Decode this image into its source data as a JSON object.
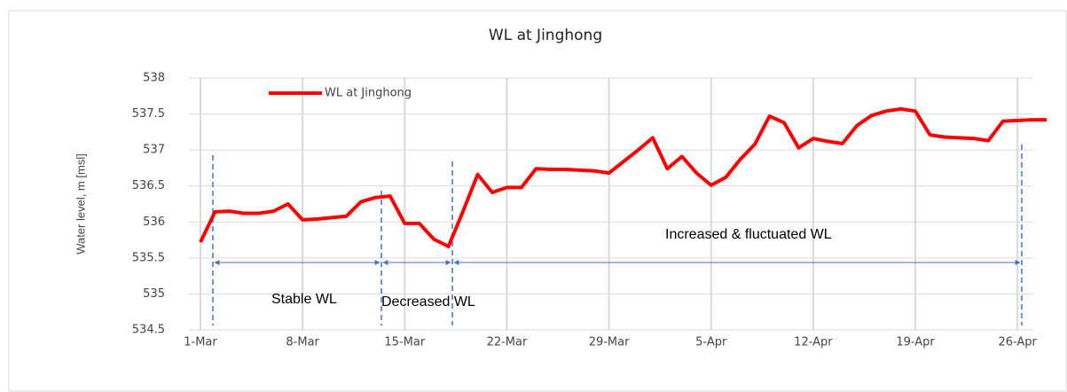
{
  "chart_data": {
    "type": "line",
    "title": "WL at Jinghong",
    "y_label": "Water level, m [msl]",
    "categories": [
      "1-Mar",
      null,
      null,
      null,
      null,
      null,
      null,
      "8-Mar",
      null,
      null,
      null,
      null,
      null,
      null,
      "15-Mar",
      null,
      null,
      null,
      null,
      null,
      null,
      "22-Mar",
      null,
      null,
      null,
      null,
      null,
      null,
      "29-Mar",
      null,
      null,
      null,
      null,
      null,
      null,
      "5-Apr",
      null,
      null,
      null,
      null,
      null,
      null,
      "12-Apr",
      null,
      null,
      null,
      null,
      null,
      null,
      "19-Apr",
      null,
      null,
      null,
      null,
      null,
      null,
      "26-Apr",
      null,
      null
    ],
    "series": [
      {
        "name": "WL at Jinghong",
        "color": "#ff0000",
        "values": [
          535.72,
          536.14,
          536.15,
          536.12,
          536.12,
          536.15,
          536.25,
          536.03,
          536.04,
          536.06,
          536.08,
          536.28,
          536.34,
          536.36,
          535.98,
          535.98,
          535.76,
          535.66,
          536.15,
          536.66,
          536.41,
          536.48,
          536.48,
          536.74,
          536.73,
          536.73,
          536.72,
          536.71,
          536.68,
          536.84,
          537.0,
          537.17,
          536.74,
          536.91,
          536.68,
          536.51,
          536.62,
          536.87,
          537.08,
          537.47,
          537.38,
          537.03,
          537.16,
          537.12,
          537.09,
          537.34,
          537.48,
          537.54,
          537.57,
          537.54,
          537.21,
          537.18,
          537.17,
          537.16,
          537.13,
          537.4,
          537.41,
          537.42,
          537.42
        ]
      }
    ],
    "ylim": [
      534.5,
      538
    ],
    "yticks": [
      534.5,
      535,
      535.5,
      536,
      536.5,
      537,
      537.5,
      538
    ],
    "grid": true,
    "annotations": [
      "Stable WL",
      "Decreased WL",
      "Increased & fluctuated WL"
    ]
  }
}
